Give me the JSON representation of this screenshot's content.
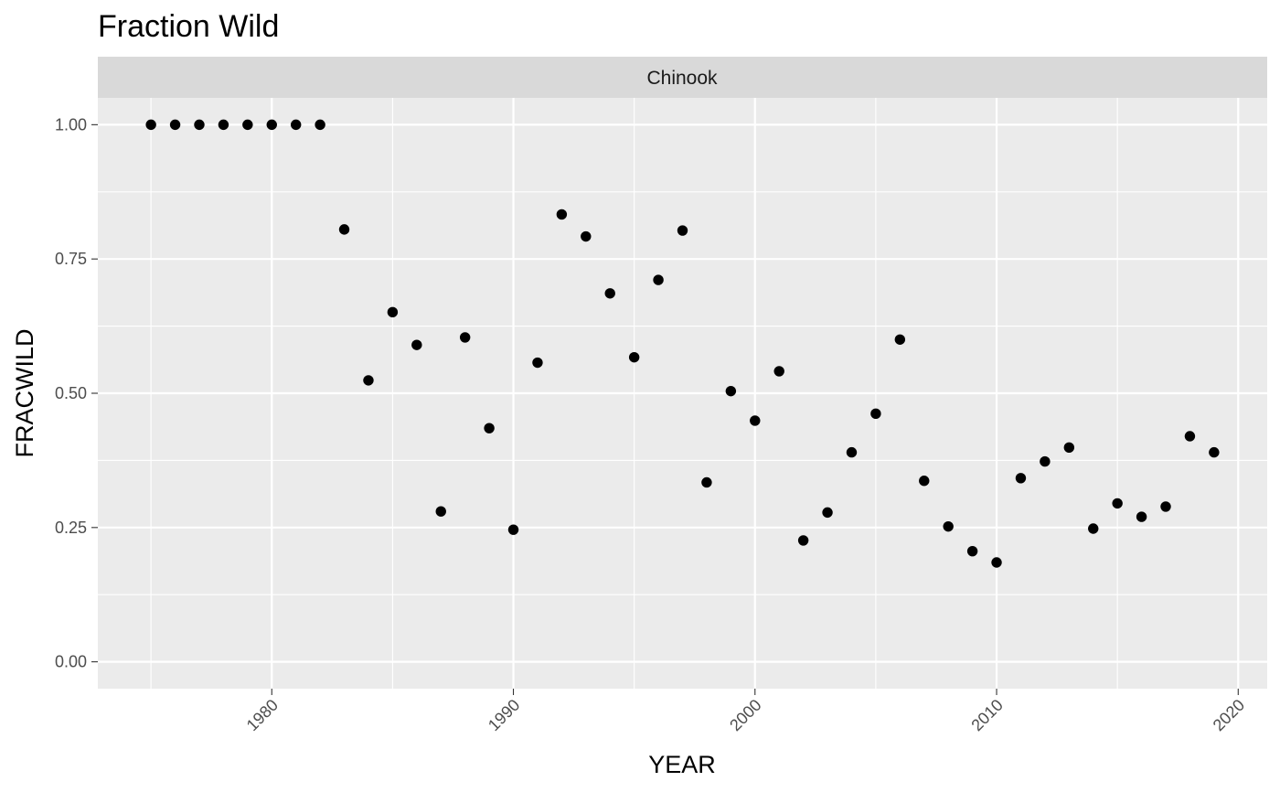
{
  "chart_data": {
    "type": "scatter",
    "title": "Fraction Wild",
    "facet": "Chinook",
    "xlabel": "YEAR",
    "ylabel": "FRACWILD",
    "xlim": [
      1972.8,
      2021.2
    ],
    "ylim": [
      -0.05,
      1.05
    ],
    "x_ticks": [
      1980,
      1990,
      2000,
      2010,
      2020
    ],
    "x_tick_labels": [
      "1980",
      "1990",
      "2000",
      "2010",
      "2020"
    ],
    "y_ticks": [
      0,
      0.25,
      0.5,
      0.75,
      1
    ],
    "y_tick_labels": [
      "0.00",
      "0.25",
      "0.50",
      "0.75",
      "1.00"
    ],
    "grid": true,
    "legend": "none",
    "colors": {
      "panel": "#ebebeb",
      "strip": "#d9d9d9",
      "grid": "#ffffff",
      "point": "#000000"
    },
    "x": [
      1975,
      1976,
      1977,
      1978,
      1979,
      1980,
      1981,
      1982,
      1983,
      1984,
      1985,
      1986,
      1987,
      1988,
      1989,
      1990,
      1991,
      1992,
      1993,
      1994,
      1995,
      1996,
      1997,
      1998,
      1999,
      2000,
      2001,
      2002,
      2003,
      2004,
      2005,
      2006,
      2007,
      2008,
      2009,
      2010,
      2011,
      2012,
      2013,
      2014,
      2015,
      2016,
      2017,
      2018,
      2019
    ],
    "y": [
      1.0,
      1.0,
      1.0,
      1.0,
      1.0,
      1.0,
      1.0,
      1.0,
      0.805,
      0.524,
      0.651,
      0.59,
      0.28,
      0.604,
      0.435,
      0.246,
      0.557,
      0.833,
      0.792,
      0.686,
      0.567,
      0.711,
      0.803,
      0.334,
      0.504,
      0.449,
      0.541,
      0.226,
      0.278,
      0.39,
      0.462,
      0.6,
      0.337,
      0.252,
      0.206,
      0.185,
      0.342,
      0.373,
      0.399,
      0.248,
      0.295,
      0.27,
      0.289,
      0.42,
      0.39
    ]
  }
}
